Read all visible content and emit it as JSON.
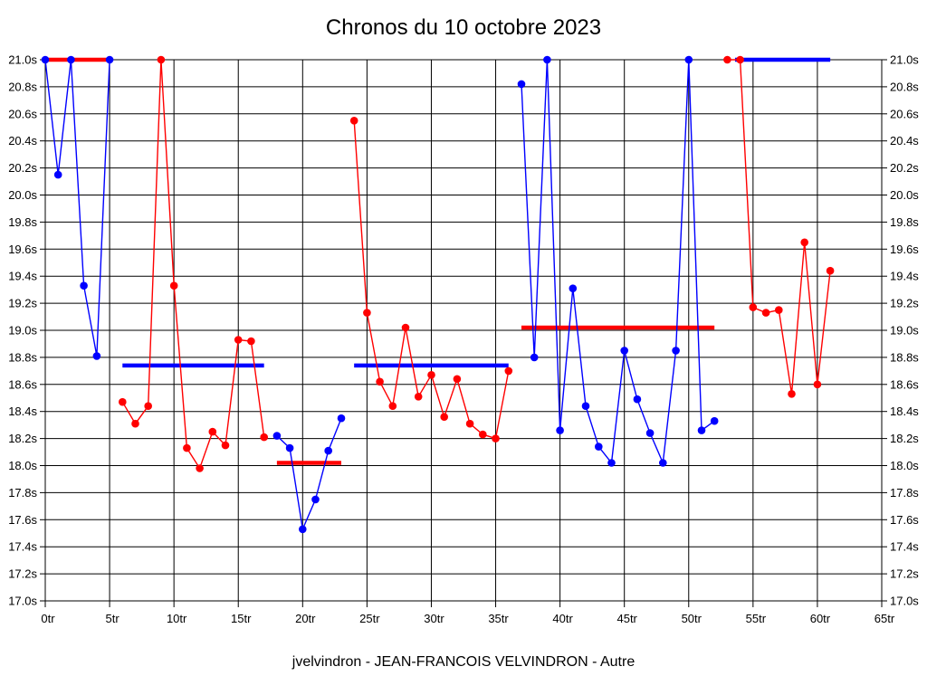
{
  "chart_data": {
    "type": "line",
    "title": "Chronos du 10 octobre 2023",
    "caption": "jvelvindron - JEAN-FRANCOIS VELVINDRON - Autre",
    "x_axis": {
      "label_unit": "tr",
      "min": 0,
      "max": 65,
      "tick_step": 5,
      "tick_labels": [
        "0tr",
        "5tr",
        "10tr",
        "15tr",
        "20tr",
        "25tr",
        "30tr",
        "35tr",
        "40tr",
        "45tr",
        "50tr",
        "55tr",
        "60tr",
        "65tr"
      ]
    },
    "y_axis": {
      "label_unit": "s",
      "min": 17.0,
      "max": 21.0,
      "tick_step": 0.2,
      "tick_labels": [
        "21.0s",
        "20.8s",
        "20.6s",
        "20.4s",
        "20.2s",
        "20.0s",
        "19.8s",
        "19.6s",
        "19.4s",
        "19.2s",
        "19.0s",
        "18.8s",
        "18.6s",
        "18.4s",
        "18.2s",
        "18.0s",
        "17.8s",
        "17.6s",
        "17.4s",
        "17.2s",
        "17.0s"
      ],
      "labels_on_both_sides": true
    },
    "grid": true,
    "legend": "none",
    "colors": {
      "blue_stint": "#0000ff",
      "red_stint": "#ff0000",
      "grid": "#000000",
      "background": "#ffffff",
      "text": "#000000"
    },
    "series": [
      {
        "name": "stint-1-blue",
        "color": "#0000ff",
        "laps": [
          0,
          1,
          2,
          3,
          4,
          5
        ],
        "times": [
          21.0,
          20.15,
          21.0,
          19.33,
          18.81,
          21.0
        ]
      },
      {
        "name": "stint-2-red",
        "color": "#ff0000",
        "laps": [
          6,
          7,
          8,
          9,
          10,
          11,
          12,
          13,
          14,
          15,
          16,
          17
        ],
        "times": [
          18.47,
          18.31,
          18.44,
          21.0,
          19.33,
          18.13,
          17.98,
          18.25,
          18.15,
          18.93,
          18.92,
          18.21
        ]
      },
      {
        "name": "stint-3-blue",
        "color": "#0000ff",
        "laps": [
          18,
          19,
          20,
          21,
          22,
          23
        ],
        "times": [
          18.22,
          18.13,
          17.53,
          17.75,
          18.11,
          18.35
        ]
      },
      {
        "name": "stint-4-red",
        "color": "#ff0000",
        "laps": [
          24,
          25,
          26,
          27,
          28,
          29,
          30,
          31,
          32,
          33,
          34,
          35,
          36
        ],
        "times": [
          20.55,
          19.13,
          18.62,
          18.44,
          19.02,
          18.51,
          18.67,
          18.36,
          18.64,
          18.31,
          18.23,
          18.2,
          18.7
        ]
      },
      {
        "name": "stint-5-blue",
        "color": "#0000ff",
        "laps": [
          37,
          38,
          39,
          40,
          41,
          42,
          43,
          44,
          45,
          46,
          47,
          48,
          49,
          50,
          51,
          52
        ],
        "times": [
          20.82,
          18.8,
          21.0,
          18.26,
          19.31,
          18.44,
          18.14,
          18.02,
          18.85,
          18.49,
          18.24,
          18.02,
          18.85,
          21.0,
          18.26,
          18.33
        ]
      },
      {
        "name": "stint-6-red",
        "color": "#ff0000",
        "laps": [
          53,
          54,
          55,
          56,
          57,
          58,
          59,
          60,
          61
        ],
        "times": [
          21.0,
          21.0,
          19.17,
          19.13,
          19.15,
          18.53,
          19.65,
          18.6,
          19.44
        ]
      }
    ],
    "average_lines": [
      {
        "name": "avg-stint-1",
        "color": "#ff0000",
        "value": 21.0,
        "from_lap": 0,
        "to_lap": 5
      },
      {
        "name": "avg-stint-2",
        "color": "#0000ff",
        "value": 18.74,
        "from_lap": 6,
        "to_lap": 17
      },
      {
        "name": "avg-stint-3",
        "color": "#ff0000",
        "value": 18.02,
        "from_lap": 18,
        "to_lap": 23
      },
      {
        "name": "avg-stint-4",
        "color": "#0000ff",
        "value": 18.74,
        "from_lap": 24,
        "to_lap": 36
      },
      {
        "name": "avg-stint-5",
        "color": "#ff0000",
        "value": 19.02,
        "from_lap": 37,
        "to_lap": 52
      },
      {
        "name": "avg-stint-6",
        "color": "#0000ff",
        "value": 21.0,
        "from_lap": 53.6,
        "to_lap": 61
      }
    ]
  }
}
